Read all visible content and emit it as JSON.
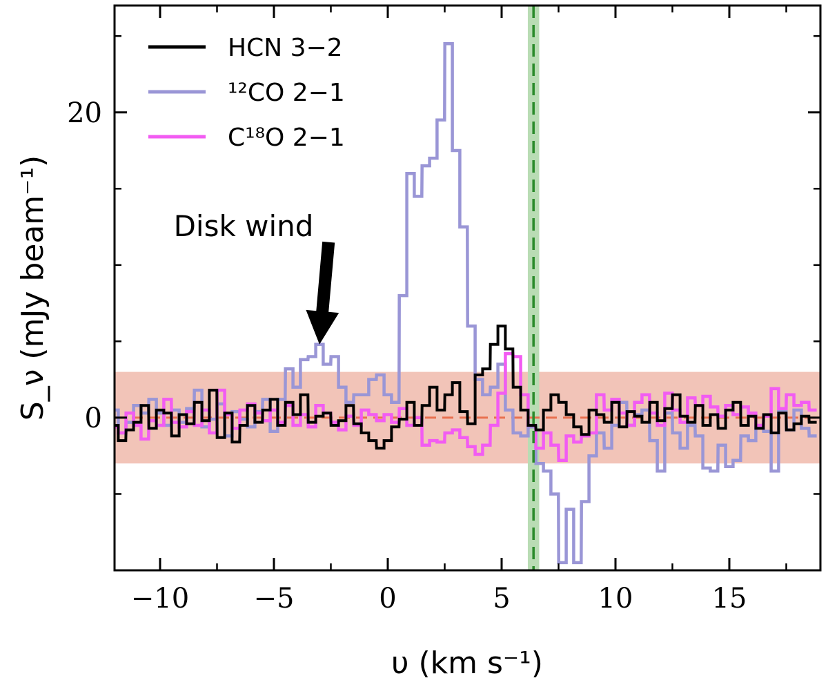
{
  "chart_data": {
    "type": "line",
    "step": true,
    "title": "",
    "xlabel": "υ (km s⁻¹)",
    "ylabel": "S_ν (mJy beam⁻¹)",
    "xlim": [
      -12,
      19
    ],
    "ylim": [
      -10,
      27
    ],
    "x_ticks": [
      -10,
      -5,
      0,
      5,
      10,
      15
    ],
    "x_tick_labels": [
      "−10",
      "−5",
      "0",
      "5",
      "10",
      "15"
    ],
    "y_ticks": [
      0,
      20
    ],
    "y_tick_labels": [
      "0",
      "20"
    ],
    "noise_band": {
      "ymin": -3,
      "ymax": 3,
      "color": "#f2c4b8"
    },
    "baseline": {
      "y": 0,
      "color": "#e8704f"
    },
    "systemic_velocity": {
      "x": 6.4,
      "halfwidth": 0.25,
      "line_color": "#2a8a2a",
      "band_color": "#b9dcb4"
    },
    "annotation": {
      "text": "Disk wind",
      "arrow_to": {
        "x": -3.0,
        "y": 4.8
      },
      "arrow_from": {
        "x": -2.6,
        "y": 11.5
      }
    },
    "series": [
      {
        "name": "HCN 3−2",
        "color": "#000000",
        "x": [
          -12.0,
          -11.67,
          -11.33,
          -11.0,
          -10.67,
          -10.33,
          -10.0,
          -9.67,
          -9.33,
          -9.0,
          -8.67,
          -8.33,
          -8.0,
          -7.67,
          -7.33,
          -7.0,
          -6.67,
          -6.33,
          -6.0,
          -5.67,
          -5.33,
          -5.0,
          -4.67,
          -4.33,
          -4.0,
          -3.67,
          -3.33,
          -3.0,
          -2.67,
          -2.33,
          -2.0,
          -1.67,
          -1.33,
          -1.0,
          -0.67,
          -0.33,
          0.0,
          0.33,
          0.67,
          1.0,
          1.33,
          1.67,
          2.0,
          2.33,
          2.67,
          3.0,
          3.33,
          3.67,
          4.0,
          4.33,
          4.67,
          5.0,
          5.33,
          5.67,
          6.0,
          6.33,
          6.67,
          7.0,
          7.33,
          7.67,
          8.0,
          8.33,
          8.67,
          9.0,
          9.33,
          9.67,
          10.0,
          10.33,
          10.67,
          11.0,
          11.33,
          11.67,
          12.0,
          12.33,
          12.67,
          13.0,
          13.33,
          13.67,
          14.0,
          14.33,
          14.67,
          15.0,
          15.33,
          15.67,
          16.0,
          16.33,
          16.67,
          17.0,
          17.33,
          17.67,
          18.0,
          18.33,
          18.67
        ],
        "values": [
          -0.5,
          -1.5,
          -0.8,
          -0.3,
          0.8,
          -0.7,
          0.5,
          0.3,
          -1.2,
          0.2,
          -0.4,
          1.0,
          -0.2,
          1.8,
          -1.3,
          0.3,
          -1.6,
          -0.5,
          0.8,
          -0.3,
          0.5,
          1.2,
          -0.5,
          1.0,
          0.2,
          1.5,
          -0.3,
          0.1,
          0.3,
          -0.5,
          -0.2,
          0.8,
          -0.4,
          -1.0,
          -1.5,
          -2.0,
          -1.5,
          -0.6,
          -0.1,
          1.0,
          -0.5,
          0.8,
          2.0,
          0.5,
          1.5,
          2.3,
          0.4,
          -0.4,
          2.8,
          3.2,
          4.8,
          6.0,
          4.5,
          2.0,
          0.5,
          -0.5,
          -0.8,
          0.5,
          1.5,
          1.0,
          0.2,
          -0.6,
          -1.1,
          0.5,
          0.2,
          -0.3,
          1.0,
          -0.6,
          0.4,
          0.1,
          -0.3,
          1.0,
          -0.2,
          0.6,
          1.5,
          0.1,
          -0.3,
          0.8,
          -0.5,
          0.2,
          -0.7,
          0.5,
          1.0,
          -0.5,
          0.1,
          -0.7,
          0.2,
          -1.0,
          0.3,
          -0.8,
          -0.4,
          0.1,
          -0.3
        ]
      },
      {
        "name": "¹²CO 2−1",
        "color": "#9a96d6",
        "x": [
          -12.0,
          -11.67,
          -11.33,
          -11.0,
          -10.67,
          -10.33,
          -10.0,
          -9.67,
          -9.33,
          -9.0,
          -8.67,
          -8.33,
          -8.0,
          -7.67,
          -7.33,
          -7.0,
          -6.67,
          -6.33,
          -6.0,
          -5.67,
          -5.33,
          -5.0,
          -4.67,
          -4.33,
          -4.0,
          -3.67,
          -3.33,
          -3.0,
          -2.67,
          -2.33,
          -2.0,
          -1.67,
          -1.33,
          -1.0,
          -0.67,
          -0.33,
          0.0,
          0.33,
          0.67,
          1.0,
          1.33,
          1.67,
          2.0,
          2.33,
          2.67,
          3.0,
          3.33,
          3.67,
          4.0,
          4.33,
          4.67,
          5.0,
          5.33,
          5.67,
          6.0,
          6.33,
          6.67,
          7.0,
          7.33,
          7.67,
          8.0,
          8.33,
          8.67,
          9.0,
          9.33,
          9.67,
          10.0,
          10.33,
          10.67,
          11.0,
          11.33,
          11.67,
          12.0,
          12.33,
          12.67,
          13.0,
          13.33,
          13.67,
          14.0,
          14.33,
          14.67,
          15.0,
          15.33,
          15.67,
          16.0,
          16.33,
          16.67,
          17.0,
          17.33,
          17.67,
          18.0,
          18.33,
          18.67
        ],
        "values": [
          0.5,
          -1.0,
          -0.3,
          0.8,
          0.3,
          1.2,
          0.3,
          -0.5,
          0.5,
          -0.3,
          0.6,
          1.8,
          -0.6,
          -0.1,
          0.9,
          -1.2,
          0.4,
          -0.1,
          -0.6,
          0.4,
          1.2,
          -0.9,
          1.2,
          3.2,
          2.0,
          3.8,
          4.0,
          4.8,
          3.5,
          4.0,
          2.0,
          1.0,
          1.5,
          1.5,
          2.5,
          2.8,
          1.5,
          1.0,
          8.0,
          16.0,
          14.5,
          16.5,
          17.0,
          19.5,
          24.5,
          17.5,
          12.5,
          6.0,
          2.5,
          1.5,
          2.0,
          3.5,
          0.5,
          -1.0,
          -1.2,
          -0.6,
          -3.0,
          -3.5,
          -5.0,
          -9.5,
          -6.0,
          -9.5,
          -5.5,
          -2.5,
          -1.0,
          -2.0,
          -0.5,
          1.0,
          -0.5,
          0.2,
          0.5,
          -1.5,
          -3.5,
          0.3,
          -1.0,
          -2.0,
          -0.5,
          -1.2,
          -3.3,
          -3.5,
          -1.8,
          -3.2,
          -2.8,
          -1.2,
          -1.5,
          -0.6,
          -0.9,
          -3.5,
          0.4,
          -0.8,
          0.5,
          -0.7,
          -1.2
        ]
      },
      {
        "name": "C¹⁸O 2−1",
        "color": "#f25cf2",
        "x": [
          -12.0,
          -11.67,
          -11.33,
          -11.0,
          -10.67,
          -10.33,
          -10.0,
          -9.67,
          -9.33,
          -9.0,
          -8.67,
          -8.33,
          -8.0,
          -7.67,
          -7.33,
          -7.0,
          -6.67,
          -6.33,
          -6.0,
          -5.67,
          -5.33,
          -5.0,
          -4.67,
          -4.33,
          -4.0,
          -3.67,
          -3.33,
          -3.0,
          -2.67,
          -2.33,
          -2.0,
          -1.67,
          -1.33,
          -1.0,
          -0.67,
          -0.33,
          0.0,
          0.33,
          0.67,
          1.0,
          1.33,
          1.67,
          2.0,
          2.33,
          2.67,
          3.0,
          3.33,
          3.67,
          4.0,
          4.33,
          4.67,
          5.0,
          5.33,
          5.67,
          6.0,
          6.33,
          6.67,
          7.0,
          7.33,
          7.67,
          8.0,
          8.33,
          8.67,
          9.0,
          9.33,
          9.67,
          10.0,
          10.33,
          10.67,
          11.0,
          11.33,
          11.67,
          12.0,
          12.33,
          12.67,
          13.0,
          13.33,
          13.67,
          14.0,
          14.33,
          14.67,
          15.0,
          15.33,
          15.67,
          16.0,
          16.33,
          16.67,
          17.0,
          17.33,
          17.67,
          18.0,
          18.33,
          18.67
        ],
        "values": [
          -0.6,
          -1.0,
          0.3,
          -0.5,
          -1.4,
          -0.2,
          -0.5,
          1.2,
          -0.3,
          -0.6,
          0.4,
          -0.5,
          0.5,
          -1.0,
          1.8,
          0.2,
          -0.7,
          0.5,
          0.9,
          0.3,
          -0.2,
          0.5,
          -0.3,
          0.8,
          -0.5,
          0.2,
          -0.6,
          0.8,
          0.3,
          -0.3,
          -0.8,
          0.1,
          -0.5,
          0.5,
          0.2,
          -0.2,
          0.2,
          -0.3,
          0.6,
          -0.5,
          0.0,
          -1.8,
          -1.5,
          -1.6,
          -1.0,
          -0.8,
          -1.3,
          -1.9,
          -2.4,
          -1.8,
          -0.5,
          1.6,
          4.2,
          4.0,
          1.5,
          -0.5,
          -2.0,
          -1.0,
          -1.8,
          -2.8,
          -1.2,
          -1.6,
          -1.2,
          -1.0,
          1.5,
          0.5,
          1.2,
          0.3,
          -0.5,
          1.0,
          1.5,
          0.3,
          -0.5,
          1.6,
          0.5,
          -0.3,
          1.3,
          0.8,
          1.4,
          0.7,
          0.1,
          0.8,
          0.2,
          0.7,
          0.3,
          -0.5,
          0.1,
          1.9,
          0.6,
          1.5,
          0.8,
          1.0,
          0.5
        ]
      }
    ]
  }
}
